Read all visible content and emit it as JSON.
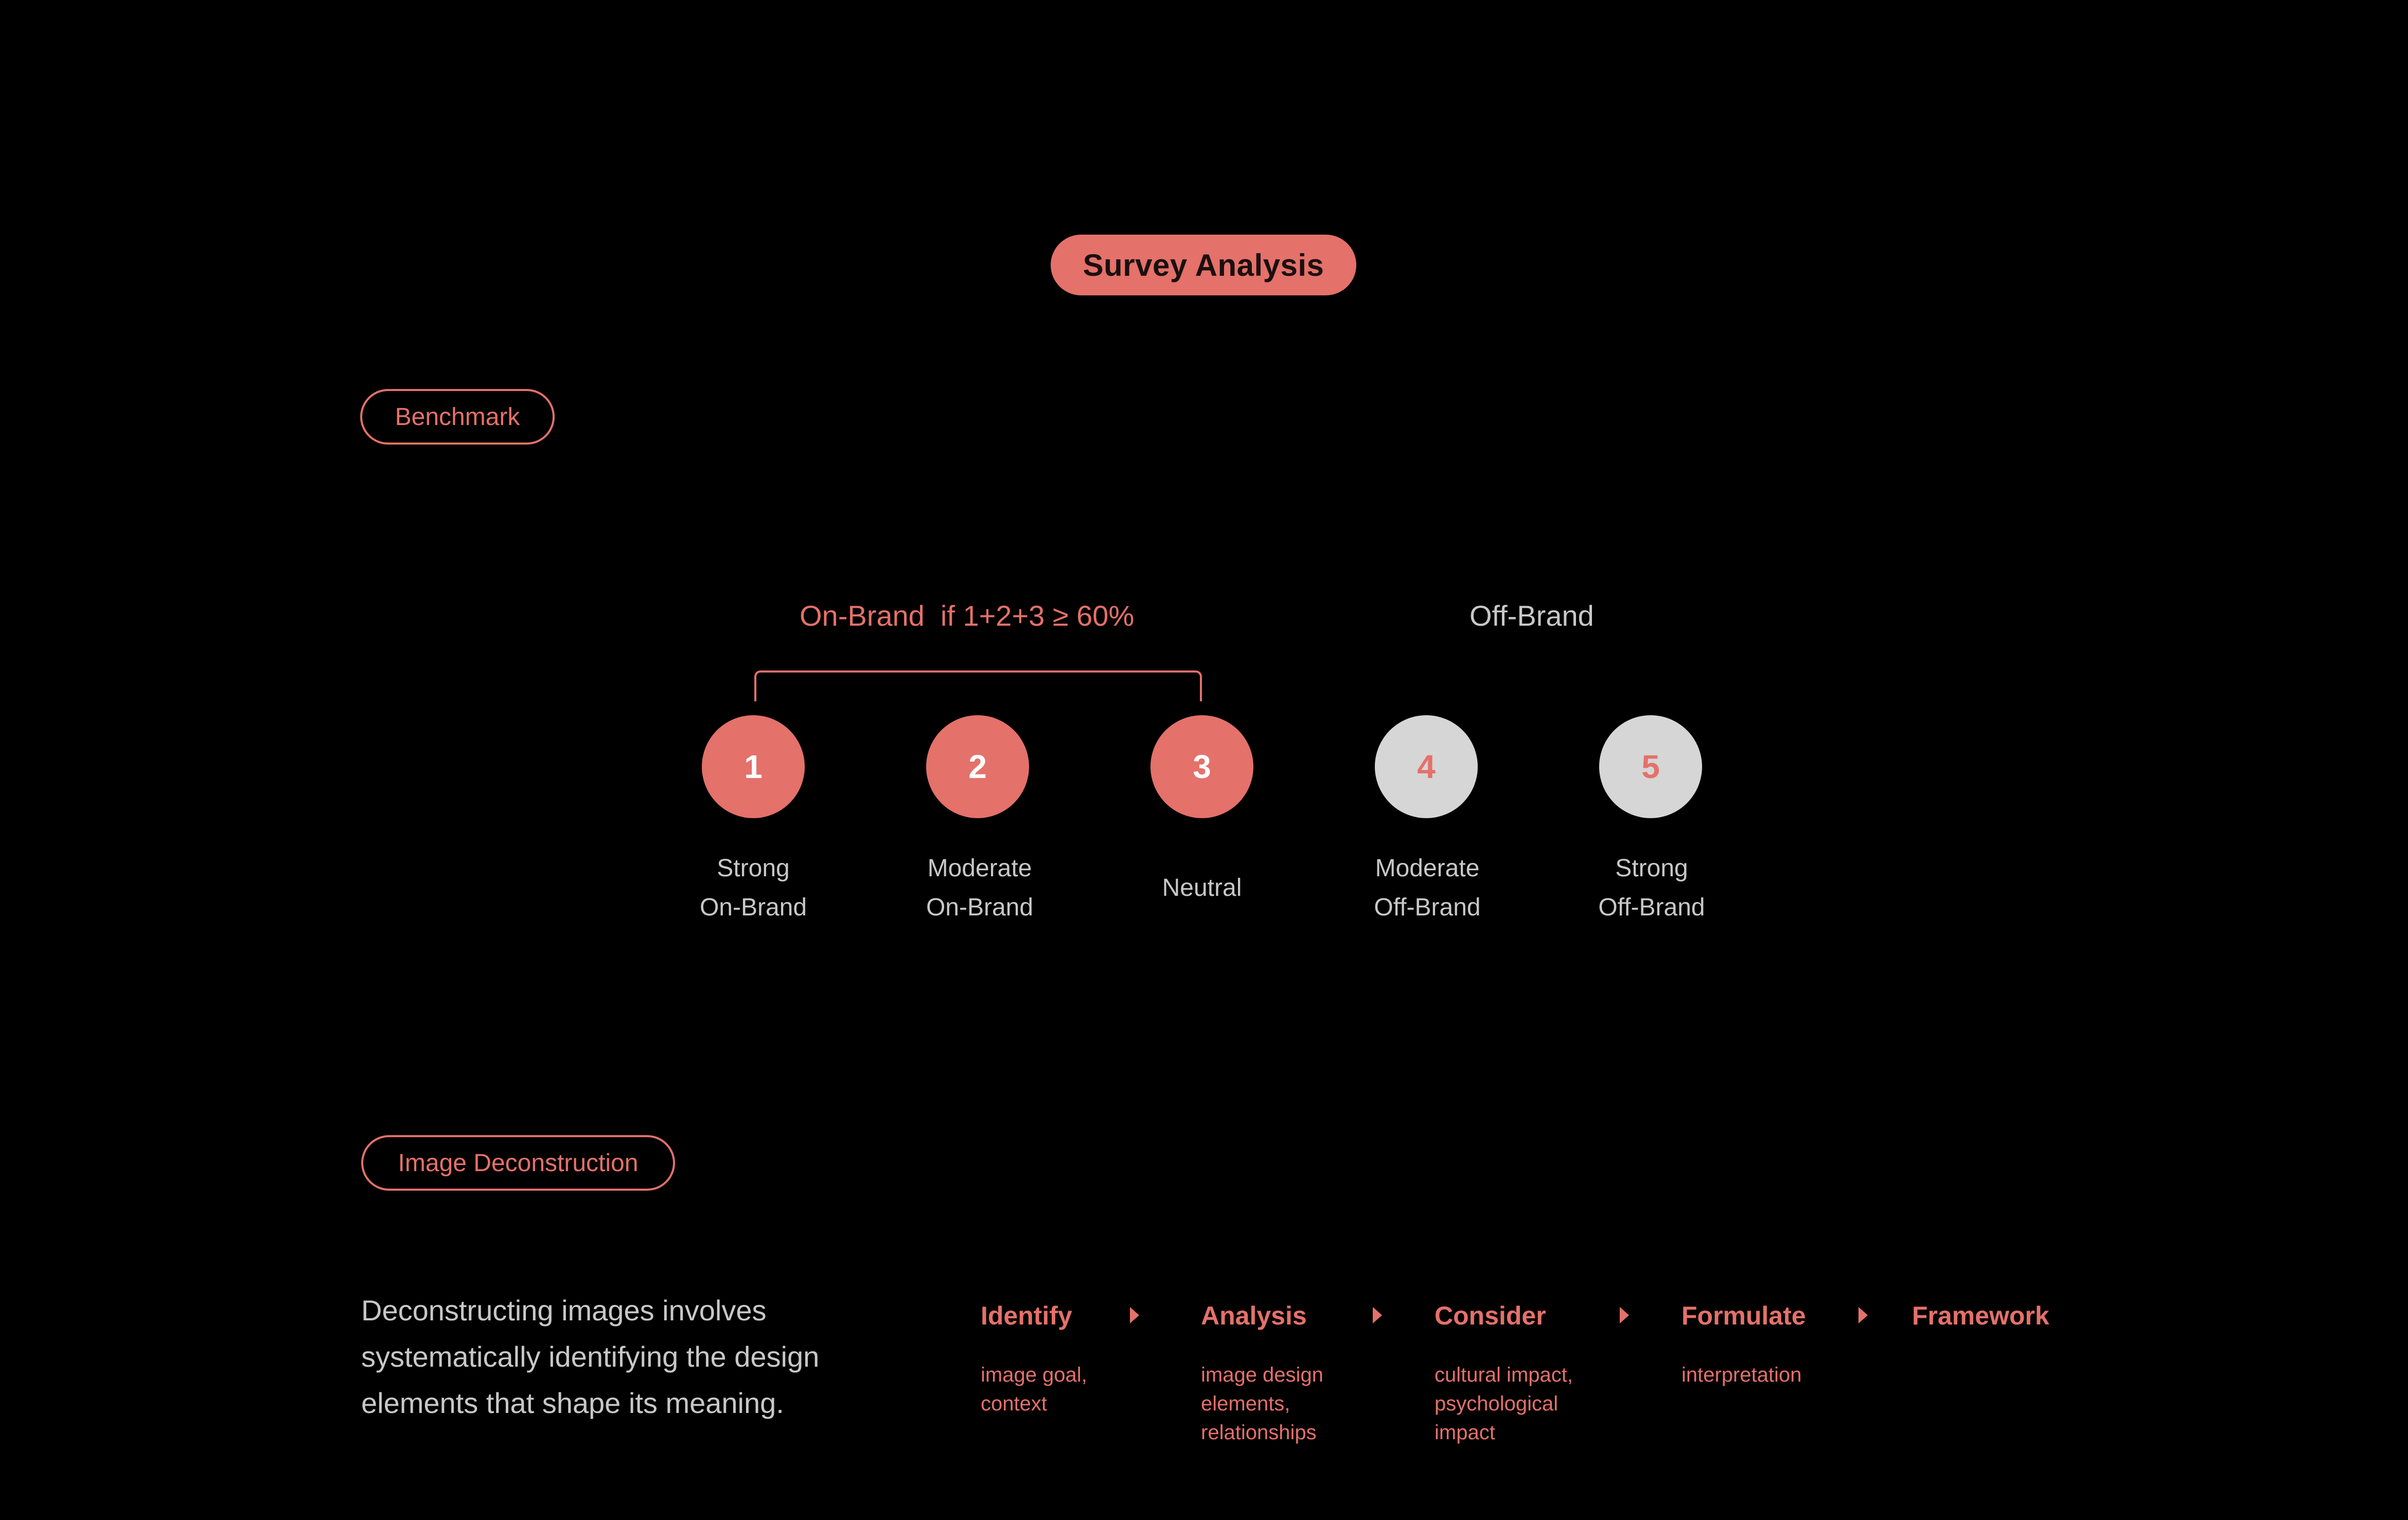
{
  "title": "Survey Analysis",
  "benchmark_tag": "Benchmark",
  "groups": {
    "on_brand": "On-Brand  if 1+2+3 ≥ 60%",
    "off_brand": "Off-Brand"
  },
  "ratings": [
    {
      "number": "1",
      "line1": "Strong",
      "line2": "On-Brand",
      "group": "on"
    },
    {
      "number": "2",
      "line1": "Moderate",
      "line2": "On-Brand",
      "group": "on"
    },
    {
      "number": "3",
      "line1": "",
      "line2": "Neutral",
      "group": "on"
    },
    {
      "number": "4",
      "line1": "Moderate",
      "line2": "Off-Brand",
      "group": "off"
    },
    {
      "number": "5",
      "line1": "Strong",
      "line2": "Off-Brand",
      "group": "off"
    }
  ],
  "deconstruction_tag": "Image Deconstruction",
  "description": "Deconstructing images involves systematically identifying the design elements that shape its meaning.",
  "steps": [
    {
      "title": "Identify",
      "detail": "image goal, context"
    },
    {
      "title": "Analysis",
      "detail": "image design elements, relationships"
    },
    {
      "title": "Consider",
      "detail": "cultural impact, psychological impact"
    },
    {
      "title": "Formulate",
      "detail": "interpretation"
    },
    {
      "title": "Framework",
      "detail": ""
    }
  ],
  "colors": {
    "accent": "#e4716a",
    "muted_text": "#c8c8c8",
    "off_circle": "#d6d6d6",
    "background": "#000000"
  }
}
